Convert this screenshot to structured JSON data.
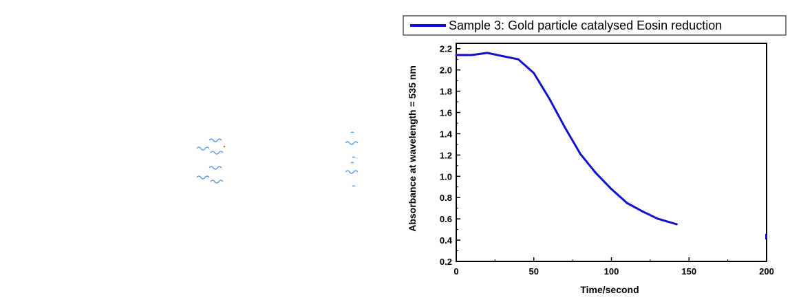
{
  "chart_data": {
    "type": "line",
    "xlabel": "Time/second",
    "ylabel": "Absorbance at wavelength = 535 nm",
    "xlim": [
      0,
      200
    ],
    "ylim": [
      0.2,
      2.25
    ],
    "x_ticks": [
      0,
      50,
      100,
      150,
      200
    ],
    "y_ticks": [
      0.2,
      0.4,
      0.6,
      0.8,
      1.0,
      1.2,
      1.4,
      1.6,
      1.8,
      2.0,
      2.2
    ],
    "x_tick_labels": [
      "0",
      "50",
      "100",
      "150",
      "200"
    ],
    "y_tick_labels": [
      "0.2",
      "0.4",
      "0.6",
      "0.8",
      "1.0",
      "1.2",
      "1.4",
      "1.6",
      "1.8",
      "2.0",
      "2.2"
    ],
    "grid": false,
    "legend_position": "top",
    "series": [
      {
        "name": "Sample 3: Gold particle catalysed Eosin reduction",
        "color": "#1010cc",
        "x": [
          0,
          10,
          20,
          30,
          40,
          50,
          60,
          70,
          80,
          90,
          100,
          110,
          120,
          130,
          142
        ],
        "y": [
          2.14,
          2.14,
          2.16,
          2.13,
          2.1,
          1.97,
          1.73,
          1.46,
          1.21,
          1.03,
          0.88,
          0.75,
          0.67,
          0.6,
          0.55
        ]
      }
    ]
  },
  "decorations": {
    "wave_color": "#4a90e2",
    "edge_marker_color": "#1010cc"
  }
}
